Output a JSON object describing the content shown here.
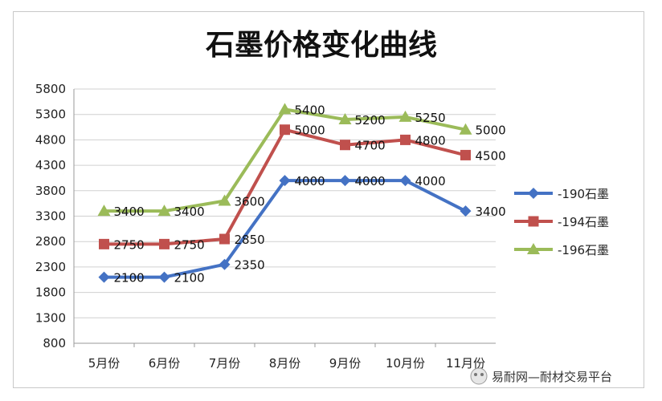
{
  "chart_data": {
    "type": "line",
    "title": "石墨价格变化曲线",
    "categories": [
      "5月份",
      "6月份",
      "7月份",
      "8月份",
      "9月份",
      "10月份",
      "11月份"
    ],
    "ylim": [
      800,
      5800
    ],
    "yticks": [
      800,
      1300,
      1800,
      2300,
      2800,
      3300,
      3800,
      4300,
      4800,
      5300,
      5800
    ],
    "grid": "horizontal",
    "legend_position": "right",
    "series": [
      {
        "name": "-190石墨",
        "color": "#4472c4",
        "marker": "diamond",
        "values": [
          2100,
          2100,
          2350,
          4000,
          4000,
          4000,
          3400
        ],
        "labels": [
          "2100",
          "2100",
          "2350",
          "4000",
          "4000",
          "4000",
          "3400"
        ]
      },
      {
        "name": "-194石墨",
        "color": "#c0504d",
        "marker": "square",
        "values": [
          2750,
          2750,
          2850,
          5000,
          4700,
          4800,
          4500
        ],
        "labels": [
          "2750",
          "2750",
          "2850",
          "5000",
          "4700",
          "4800",
          "4500"
        ]
      },
      {
        "name": "-196石墨",
        "color": "#9bbb59",
        "marker": "triangle",
        "values": [
          3400,
          3400,
          3600,
          5400,
          5200,
          5250,
          5000
        ],
        "labels": [
          "3400",
          "3400",
          "3600",
          "5400",
          "5200",
          "5250",
          "5000"
        ]
      }
    ]
  },
  "watermark": {
    "text": "易耐网—耐材交易平台",
    "icon": "wechat-icon"
  }
}
